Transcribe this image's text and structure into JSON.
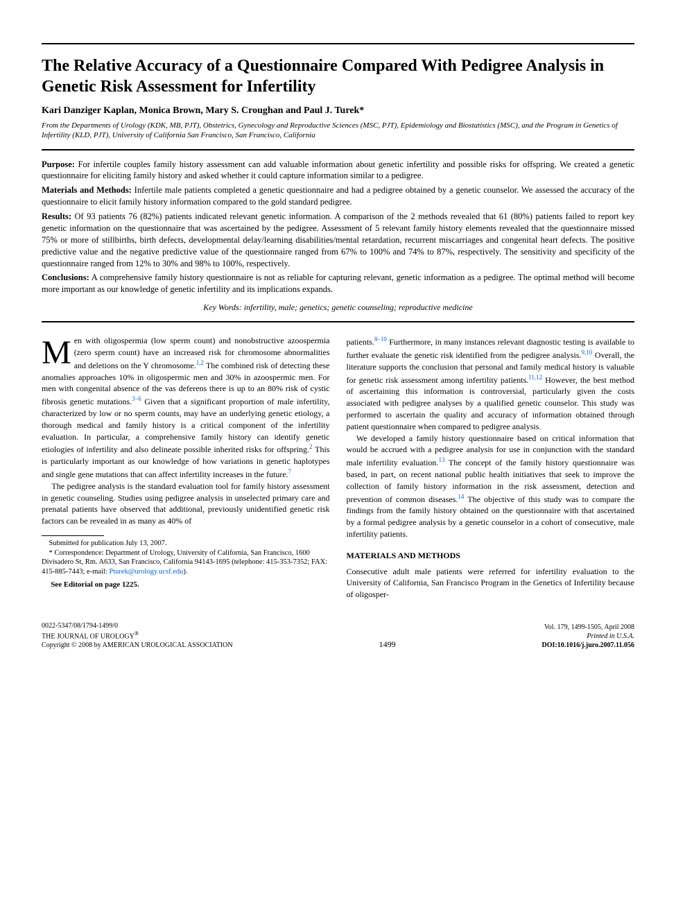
{
  "title": "The Relative Accuracy of a Questionnaire Compared With Pedigree Analysis in Genetic Risk Assessment for Infertility",
  "authors": "Kari Danziger Kaplan, Monica Brown, Mary S. Croughan and Paul J. Turek*",
  "affiliation": "From the Departments of Urology (KDK, MB, PJT), Obstetrics, Gynecology and Reproductive Sciences (MSC, PJT), Epidemiology and Biostatistics (MSC), and the Program in Genetics of Infertility (KLD, PJT), University of California San Francisco, San Francisco, California",
  "abstract": {
    "purpose_label": "Purpose:",
    "purpose": " For infertile couples family history assessment can add valuable information about genetic infertility and possible risks for offspring. We created a genetic questionnaire for eliciting family history and asked whether it could capture information similar to a pedigree.",
    "methods_label": "Materials and Methods:",
    "methods": " Infertile male patients completed a genetic questionnaire and had a pedigree obtained by a genetic counselor. We assessed the accuracy of the questionnaire to elicit family history information compared to the gold standard pedigree.",
    "results_label": "Results:",
    "results": " Of 93 patients 76 (82%) patients indicated relevant genetic information. A comparison of the 2 methods revealed that 61 (80%) patients failed to report key genetic information on the questionnaire that was ascertained by the pedigree. Assessment of 5 relevant family history elements revealed that the questionnaire missed 75% or more of stillbirths, birth defects, developmental delay/learning disabilities/mental retardation, recurrent miscarriages and congenital heart defects. The positive predictive value and the negative predictive value of the questionnaire ranged from 67% to 100% and 74% to 87%, respectively. The sensitivity and specificity of the questionnaire ranged from 12% to 30% and 98% to 100%, respectively.",
    "conclusions_label": "Conclusions:",
    "conclusions": " A comprehensive family history questionnaire is not as reliable for capturing relevant, genetic information as a pedigree. The optimal method will become more important as our knowledge of genetic infertility and its implications expands."
  },
  "keywords": "Key Words: infertility, male; genetics; genetic counseling; reproductive medicine",
  "body": {
    "dropcap": "M",
    "p1a": "en with oligospermia (low sperm count) and nonobstructive azoospermia (zero sperm count) have an increased risk for chromosome abnormalities and deletions on the Y chromosome.",
    "p1b": " The combined risk of detecting these anomalies approaches 10% in oligospermic men and 30% in azoospermic men. For men with congenital absence of the vas deferens there is up to an 80% risk of cystic fibrosis genetic mutations.",
    "p1c": " Given that a significant proportion of male infertility, characterized by low or no sperm counts, may have an underlying genetic etiology, a thorough medical and family history is a critical component of the infertility evaluation. In particular, a comprehensive family history can identify genetic etiologies of infertility and also delineate possible inherited risks for offspring.",
    "p1d": " This is particularly important as our knowledge of how variations in genetic haplotypes and single gene mutations that can affect infertility increases in the future.",
    "p2a": "The pedigree analysis is the standard evaluation tool for family history assessment in genetic counseling. Studies using pedigree analysis in unselected primary care and prenatal patients have observed that additional, previously unidentified genetic risk factors can be revealed in as many as 40% of ",
    "p2b": "patients.",
    "p2c": " Furthermore, in many instances relevant diagnostic testing is available to further evaluate the genetic risk identified from the pedigree analysis.",
    "p2d": " Overall, the literature supports the conclusion that personal and family medical history is valuable for genetic risk assessment among infertility patients.",
    "p2e": " However, the best method of ascertaining this information is controversial, particularly given the costs associated with pedigree analyses by a qualified genetic counselor. This study was performed to ascertain the quality and accuracy of information obtained through patient questionnaire when compared to pedigree analysis.",
    "p3a": "We developed a family history questionnaire based on critical information that would be accrued with a pedigree analysis for use in conjunction with the standard male infertility evaluation.",
    "p3b": " The concept of the family history questionnaire was based, in part, on recent national public health initiatives that seek to improve the collection of family history information in the risk assessment, detection and prevention of common diseases.",
    "p3c": " The objective of this study was to compare the findings from the family history obtained on the questionnaire with that ascertained by a formal pedigree analysis by a genetic counselor in a cohort of consecutive, male infertility patients.",
    "section1": "MATERIALS AND METHODS",
    "p4": "Consecutive adult male patients were referred for infertility evaluation to the University of California, San Francisco Program in the Genetics of Infertility because of oligosper-"
  },
  "refs": {
    "r12": "1,2",
    "r36": "3–6",
    "r2": "2",
    "r7": "7",
    "r810": "8–10",
    "r910": "9,10",
    "r1112": "11,12",
    "r13": "13",
    "r14": "14"
  },
  "footnotes": {
    "submitted": "Submitted for publication July 13, 2007.",
    "corr": "* Correspondence: Department of Urology, University of California, San Francisco, 1600 Divisadero St, Rm. A633, San Francisco, California 94143-1695 (telephone: 415-353-7352; FAX: 415-885-7443; e-mail: ",
    "email": "Pturek@urology.ucsf.edu",
    "corr_end": ").",
    "editorial": "See Editorial on page 1225."
  },
  "footer": {
    "issn": "0022-5347/08/1794-1499/0",
    "journal": "THE JOURNAL OF UROLOGY",
    "copyright": "Copyright © 2008 by AMERICAN UROLOGICAL ASSOCIATION",
    "page": "1499",
    "volume": "Vol. 179, 1499-1505, April 2008",
    "printed": "Printed in U.S.A.",
    "doi": "DOI:10.1016/j.juro.2007.11.056"
  },
  "colors": {
    "text": "#000000",
    "link": "#0066cc",
    "background": "#ffffff"
  },
  "typography": {
    "title_fontsize": 24,
    "authors_fontsize": 14,
    "body_fontsize": 12,
    "footnote_fontsize": 10.5,
    "footer_fontsize": 10,
    "dropcap_fontsize": 48
  }
}
